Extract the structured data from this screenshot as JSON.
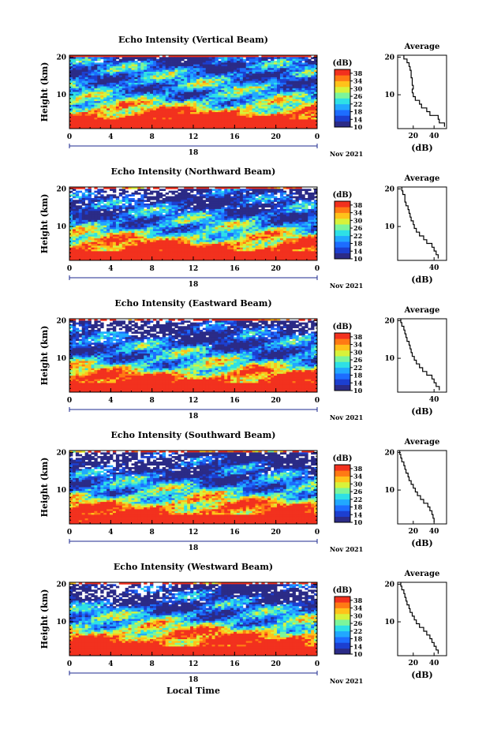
{
  "figure": {
    "xlabel": "Local Time",
    "date_suffix": "Nov 2021",
    "day_marker": "18",
    "avg_title": "Average",
    "avg_xlabel": "(dB)",
    "cb_unit": "(dB)",
    "ylabel": "Height (km)"
  },
  "colors": {
    "jet": [
      "#2b2b87",
      "#1c3fd0",
      "#1d6dff",
      "#21a8ff",
      "#2ee0e6",
      "#7cf59b",
      "#d8f23a",
      "#ffc21a",
      "#ff7a14",
      "#f2311e"
    ]
  },
  "chart_data": [
    {
      "type": "heatmap",
      "title": "Echo Intensity (Vertical Beam)",
      "x_ticks": [
        "0",
        "4",
        "8",
        "12",
        "16",
        "20",
        "0"
      ],
      "xlim": [
        0,
        24
      ],
      "y_ticks": [
        "20",
        "10"
      ],
      "ylim": [
        1,
        20.5
      ],
      "colorbar": {
        "ticks": [
          "38",
          "34",
          "30",
          "26",
          "22",
          "18",
          "14",
          "10"
        ],
        "range": [
          10,
          40
        ]
      },
      "average": {
        "x_ticks": [
          "20",
          "40"
        ],
        "xlim": [
          5,
          52
        ],
        "heights": [
          20,
          19,
          18,
          17,
          16,
          15,
          14,
          13,
          12,
          11,
          10,
          9,
          8,
          7,
          6,
          5,
          4,
          3,
          2
        ],
        "values": [
          11,
          14,
          16,
          17,
          18,
          18,
          19,
          19,
          20,
          19,
          20,
          22,
          26,
          28,
          33,
          36,
          44,
          45,
          50
        ]
      }
    },
    {
      "type": "heatmap",
      "title": "Echo Intensity (Northward Beam)",
      "x_ticks": [
        "0",
        "4",
        "8",
        "12",
        "16",
        "20",
        "0"
      ],
      "xlim": [
        0,
        24
      ],
      "y_ticks": [
        "20",
        "10"
      ],
      "ylim": [
        1,
        20.5
      ],
      "colorbar": {
        "ticks": [
          "38",
          "34",
          "30",
          "26",
          "22",
          "18",
          "14",
          "10"
        ],
        "range": [
          10,
          40
        ]
      },
      "average": {
        "x_ticks": [
          "40"
        ],
        "xlim": [
          5,
          52
        ],
        "heights": [
          20,
          19,
          18,
          17,
          16,
          15,
          14,
          13,
          12,
          11,
          10,
          9,
          8,
          7,
          6,
          5,
          4,
          3,
          2
        ],
        "values": [
          9,
          10,
          12,
          12,
          13,
          15,
          16,
          17,
          18,
          20,
          21,
          23,
          26,
          30,
          33,
          38,
          40,
          42,
          44
        ]
      }
    },
    {
      "type": "heatmap",
      "title": "Echo Intensity (Eastward Beam)",
      "x_ticks": [
        "0",
        "4",
        "8",
        "12",
        "16",
        "20",
        "0"
      ],
      "xlim": [
        0,
        24
      ],
      "y_ticks": [
        "20",
        "10"
      ],
      "ylim": [
        1,
        20.5
      ],
      "colorbar": {
        "ticks": [
          "38",
          "34",
          "30",
          "26",
          "22",
          "18",
          "14",
          "10"
        ],
        "range": [
          10,
          40
        ]
      },
      "average": {
        "x_ticks": [
          "40"
        ],
        "xlim": [
          5,
          52
        ],
        "heights": [
          20,
          19,
          18,
          17,
          16,
          15,
          14,
          13,
          12,
          11,
          10,
          9,
          8,
          7,
          6,
          5,
          4,
          3,
          2
        ],
        "values": [
          8,
          9,
          11,
          12,
          13,
          14,
          16,
          17,
          18,
          19,
          21,
          23,
          26,
          29,
          33,
          38,
          40,
          42,
          45
        ]
      }
    },
    {
      "type": "heatmap",
      "title": "Echo Intensity (Southward Beam)",
      "x_ticks": [
        "0",
        "4",
        "8",
        "12",
        "16",
        "20",
        "0"
      ],
      "xlim": [
        0,
        24
      ],
      "y_ticks": [
        "20",
        "10"
      ],
      "ylim": [
        1,
        20.5
      ],
      "colorbar": {
        "ticks": [
          "38",
          "34",
          "30",
          "26",
          "22",
          "18",
          "14",
          "10"
        ],
        "range": [
          10,
          40
        ]
      },
      "average": {
        "x_ticks": [
          "20",
          "40"
        ],
        "xlim": [
          5,
          52
        ],
        "heights": [
          20,
          19,
          18,
          17,
          16,
          15,
          14,
          13,
          12,
          11,
          10,
          9,
          8,
          7,
          6,
          5,
          4,
          3,
          2
        ],
        "values": [
          7,
          8,
          9,
          11,
          12,
          13,
          15,
          16,
          18,
          20,
          22,
          24,
          27,
          30,
          34,
          36,
          38,
          39,
          40
        ]
      }
    },
    {
      "type": "heatmap",
      "title": "Echo Intensity (Westward Beam)",
      "x_ticks": [
        "0",
        "4",
        "8",
        "12",
        "16",
        "20",
        "0"
      ],
      "xlim": [
        0,
        24
      ],
      "y_ticks": [
        "20",
        "10"
      ],
      "ylim": [
        1,
        20.5
      ],
      "colorbar": {
        "ticks": [
          "38",
          "34",
          "30",
          "26",
          "22",
          "18",
          "14",
          "10"
        ],
        "range": [
          10,
          40
        ]
      },
      "average": {
        "x_ticks": [
          "20",
          "40"
        ],
        "xlim": [
          5,
          52
        ],
        "heights": [
          20,
          19,
          18,
          17,
          16,
          15,
          14,
          13,
          12,
          11,
          10,
          9,
          8,
          7,
          6,
          5,
          4,
          3,
          2
        ],
        "values": [
          8,
          9,
          11,
          12,
          13,
          14,
          16,
          17,
          19,
          21,
          23,
          26,
          30,
          33,
          36,
          38,
          40,
          42,
          44
        ]
      }
    }
  ]
}
